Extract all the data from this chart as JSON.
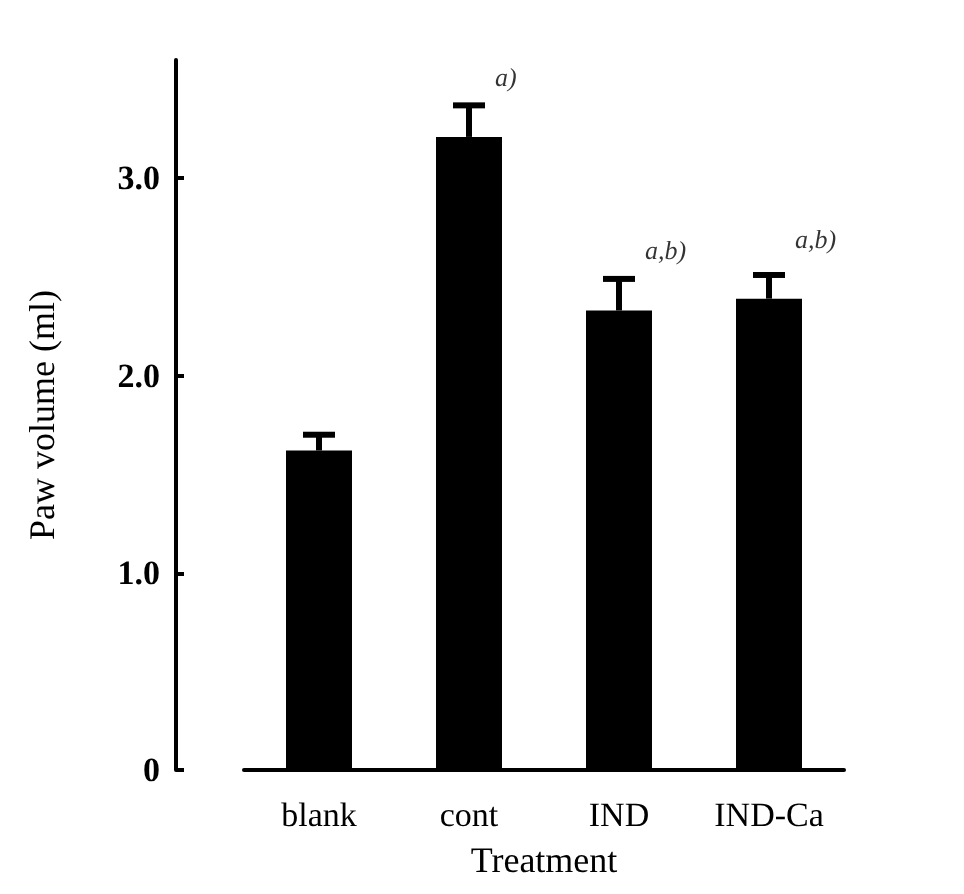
{
  "chart_data": {
    "type": "bar",
    "xlabel": "Treatment",
    "ylabel": "Paw volume (ml)",
    "categories": [
      "blank",
      "cont",
      "IND",
      "IND-Ca"
    ],
    "values": [
      1.62,
      3.21,
      2.33,
      2.39
    ],
    "errors": [
      [
        1.62,
        1.7
      ],
      [
        3.21,
        3.37
      ],
      [
        2.33,
        2.49
      ],
      [
        2.39,
        2.51
      ]
    ],
    "color": "#000000",
    "ylim": [
      0,
      3.6
    ],
    "yticks": [
      {
        "value": 0,
        "label": "0"
      },
      {
        "value": 1,
        "label": "1.0"
      },
      {
        "value": 2,
        "label": "2.0"
      },
      {
        "value": 3,
        "label": "3.0"
      }
    ],
    "annotations": [
      {
        "text": "a)",
        "x": "cont",
        "y": 3.21
      },
      {
        "text": "a,b)",
        "x": "IND",
        "y": 2.33
      },
      {
        "text": "a,b)",
        "x": "IND-Ca",
        "y": 2.39
      }
    ],
    "grid": false
  }
}
